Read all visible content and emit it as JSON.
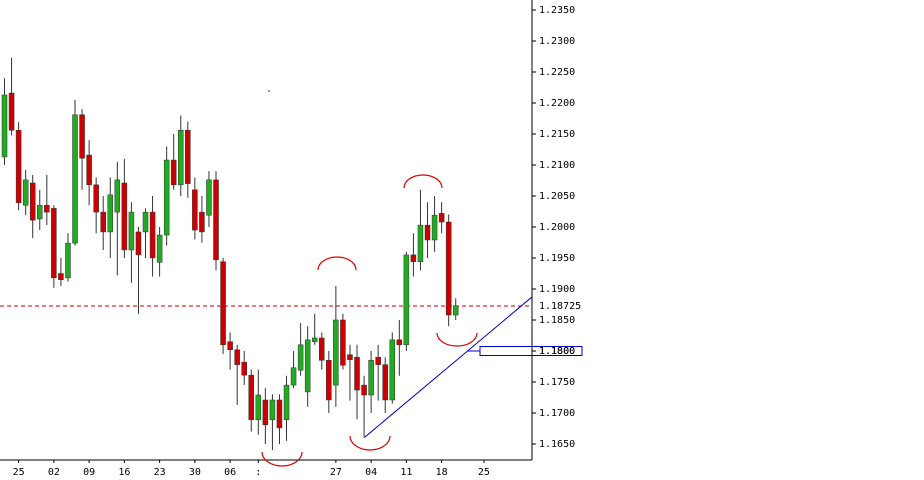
{
  "chart_data": {
    "type": "candlestick",
    "x": [
      0,
      1,
      2,
      3,
      4,
      5,
      6,
      7,
      8,
      9,
      10,
      11,
      12,
      13,
      14,
      15,
      16,
      17,
      18,
      19,
      20,
      21,
      22,
      23,
      24,
      25,
      26,
      27,
      28,
      29,
      30,
      31,
      32,
      33,
      34,
      35,
      36,
      37,
      38,
      39,
      40,
      41,
      42,
      43,
      44,
      45,
      46,
      47,
      48,
      49,
      50,
      51,
      52,
      53,
      54,
      55,
      56,
      57,
      58,
      59,
      60,
      61,
      62,
      63,
      64
    ],
    "open": [
      1.2113,
      1.2216,
      1.2156,
      1.2035,
      1.2071,
      1.2013,
      1.2035,
      1.203,
      1.1925,
      1.1918,
      1.1974,
      1.2181,
      1.2116,
      1.2068,
      1.2024,
      1.1992,
      1.2024,
      1.2071,
      1.1963,
      1.1992,
      1.1992,
      1.2024,
      1.1943,
      1.1987,
      1.2108,
      1.2068,
      1.2156,
      1.206,
      1.2024,
      1.2019,
      1.2076,
      1.1944,
      1.1815,
      1.1802,
      1.1782,
      1.1761,
      1.1689,
      1.1721,
      1.1689,
      1.1721,
      1.1689,
      1.1745,
      1.1769,
      1.1734,
      1.1815,
      1.1821,
      1.1785,
      1.1745,
      1.185,
      1.1794,
      1.179,
      1.1745,
      1.1729,
      1.179,
      1.1778,
      1.1721,
      1.1818,
      1.181,
      1.1955,
      1.1944,
      1.2003,
      1.1979,
      1.2022,
      1.2008,
      1.1858
    ],
    "high": [
      1.224,
      1.2273,
      1.2169,
      1.2092,
      1.2084,
      1.206,
      1.2084,
      1.2035,
      1.195,
      1.199,
      1.2205,
      1.219,
      1.214,
      1.208,
      1.205,
      1.208,
      1.2105,
      1.211,
      1.204,
      1.2,
      1.203,
      1.205,
      1.2,
      1.213,
      1.215,
      1.218,
      1.217,
      1.208,
      1.205,
      1.209,
      1.209,
      1.195,
      1.183,
      1.181,
      1.18,
      1.177,
      1.177,
      1.174,
      1.173,
      1.173,
      1.176,
      1.18,
      1.1845,
      1.184,
      1.186,
      1.183,
      1.18,
      1.1905,
      1.186,
      1.181,
      1.181,
      1.176,
      1.18,
      1.181,
      1.179,
      1.183,
      1.185,
      1.196,
      1.199,
      1.206,
      1.204,
      1.205,
      1.204,
      1.202,
      1.1885
    ],
    "low": [
      1.21,
      1.2148,
      1.2027,
      1.2019,
      1.1982,
      1.1995,
      1.2003,
      1.1902,
      1.1905,
      1.1912,
      1.197,
      1.206,
      1.2035,
      1.199,
      1.1963,
      1.195,
      1.1922,
      1.195,
      1.191,
      1.186,
      1.195,
      1.192,
      1.192,
      1.197,
      1.206,
      1.205,
      1.2047,
      1.198,
      1.1975,
      1.2,
      1.193,
      1.1795,
      1.177,
      1.1713,
      1.1745,
      1.167,
      1.1665,
      1.165,
      1.164,
      1.165,
      1.1655,
      1.174,
      1.176,
      1.171,
      1.181,
      1.177,
      1.17,
      1.171,
      1.177,
      1.172,
      1.169,
      1.166,
      1.17,
      1.172,
      1.17,
      1.1715,
      1.176,
      1.18,
      1.192,
      1.193,
      1.195,
      1.196,
      1.199,
      1.184,
      1.185
    ],
    "close": [
      1.2213,
      1.2156,
      1.2039,
      1.2076,
      1.2011,
      1.2035,
      1.2024,
      1.1918,
      1.1915,
      1.1974,
      1.2181,
      1.2111,
      1.2068,
      1.2024,
      1.1992,
      1.2052,
      1.2076,
      1.1963,
      1.2024,
      1.1955,
      1.2024,
      1.195,
      1.1987,
      1.2108,
      1.2068,
      1.2156,
      1.207,
      1.1995,
      1.1992,
      1.2076,
      1.1947,
      1.181,
      1.1802,
      1.1778,
      1.1761,
      1.1689,
      1.1729,
      1.1681,
      1.1721,
      1.1676,
      1.1745,
      1.1773,
      1.181,
      1.1818,
      1.1821,
      1.1785,
      1.1721,
      1.185,
      1.1777,
      1.1786,
      1.1737,
      1.1729,
      1.1785,
      1.1778,
      1.1721,
      1.1818,
      1.181,
      1.1955,
      1.1944,
      1.2003,
      1.1979,
      1.2019,
      1.2008,
      1.1858,
      1.1873
    ],
    "up_color": "#22aa22",
    "down_color": "#cc0000",
    "xlim": [
      -0.64,
      74.82
    ],
    "xticks": [
      {
        "value": 2,
        "label": "25"
      },
      {
        "value": 7,
        "label": "02"
      },
      {
        "value": 12,
        "label": "09"
      },
      {
        "value": 17,
        "label": "16"
      },
      {
        "value": 22,
        "label": "23"
      },
      {
        "value": 27,
        "label": "30"
      },
      {
        "value": 32,
        "label": "06"
      },
      {
        "value": 36,
        "label": ":"
      },
      {
        "value": 47,
        "label": "27"
      },
      {
        "value": 52,
        "label": "04"
      },
      {
        "value": 57,
        "label": "11"
      },
      {
        "value": 62,
        "label": "18"
      },
      {
        "value": 68,
        "label": "25"
      }
    ],
    "ylim": [
      1.16242,
      1.23661
    ],
    "yticks": [
      {
        "value": 1.165,
        "label": "1.1650"
      },
      {
        "value": 1.17,
        "label": "1.1700"
      },
      {
        "value": 1.175,
        "label": "1.1750"
      },
      {
        "value": 1.18,
        "label": "1.1800"
      },
      {
        "value": 1.185,
        "label": "1.1850"
      },
      {
        "value": 1.19,
        "label": "1.1900"
      },
      {
        "value": 1.195,
        "label": "1.1950"
      },
      {
        "value": 1.2,
        "label": "1.2000"
      },
      {
        "value": 1.205,
        "label": "1.2050"
      },
      {
        "value": 1.21,
        "label": "1.2100"
      },
      {
        "value": 1.215,
        "label": "1.2150"
      },
      {
        "value": 1.22,
        "label": "1.2200"
      },
      {
        "value": 1.225,
        "label": "1.2250"
      },
      {
        "value": 1.23,
        "label": "1.2300"
      },
      {
        "value": 1.235,
        "label": "1.2350"
      }
    ],
    "price_line": {
      "value": 1.18725,
      "label": "1.18725",
      "color": "#cc0000"
    },
    "level": {
      "value": 1.18,
      "label": "1.1800",
      "color": "#0000cc"
    },
    "trendline": {
      "x": [
        51.1,
        74.8
      ],
      "y": [
        1.1661,
        1.1887
      ],
      "color": "#0000cc"
    }
  }
}
